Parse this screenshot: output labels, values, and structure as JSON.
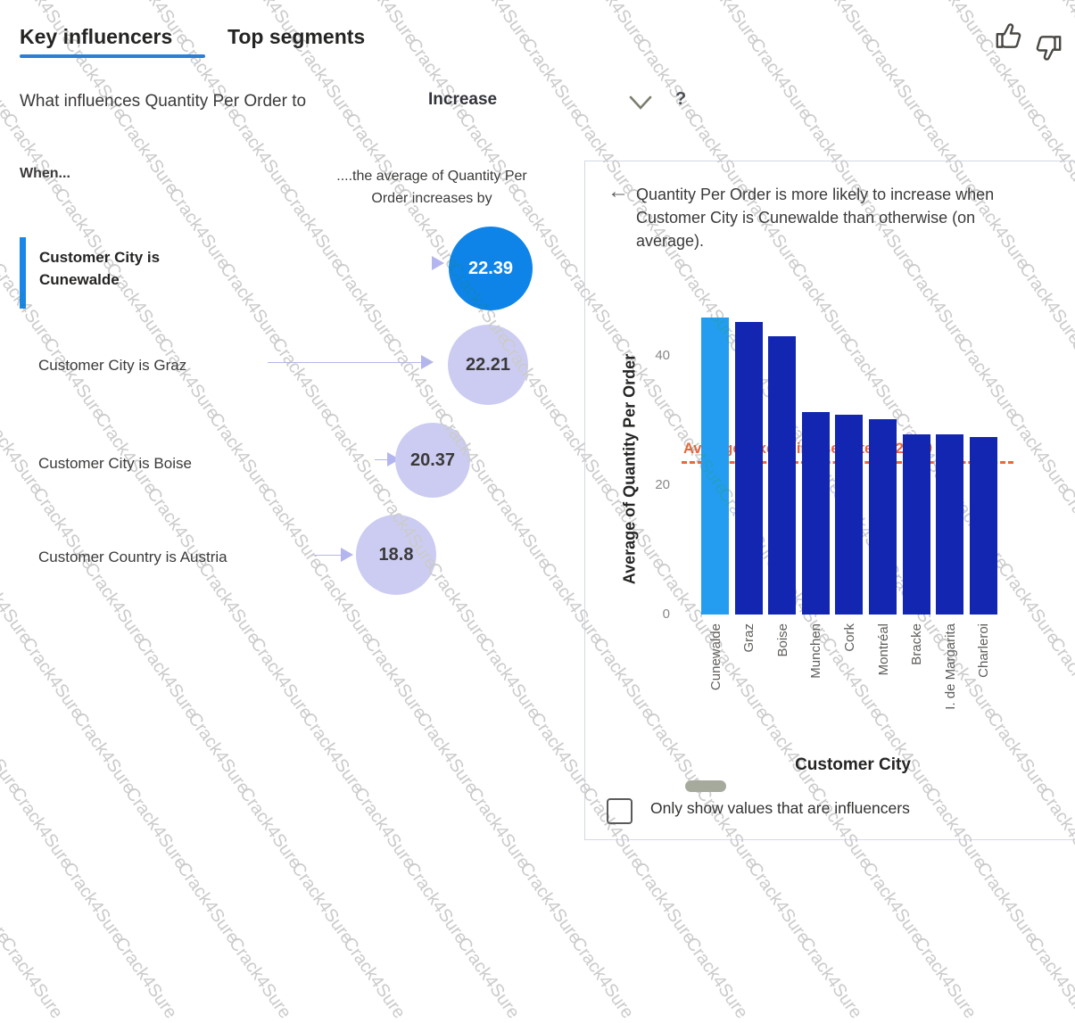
{
  "watermark": {
    "text": "Crack4Sure"
  },
  "tabs": {
    "key_influencers": "Key influencers",
    "top_segments": "Top segments"
  },
  "question": {
    "prefix": "What influences Quantity Per Order to",
    "dropdown_value": "Increase",
    "help": "?"
  },
  "left_panel": {
    "when_header": "When...",
    "effect_header": "....the average of Quantity Per Order increases by",
    "influencers": [
      {
        "label": "Customer City is Cunewalde",
        "value": "22.39",
        "selected": true
      },
      {
        "label": "Customer City is Graz",
        "value": "22.21",
        "selected": false
      },
      {
        "label": "Customer City is Boise",
        "value": "20.37",
        "selected": false
      },
      {
        "label": "Customer Country is Austria",
        "value": "18.8",
        "selected": false
      }
    ]
  },
  "right_panel": {
    "back_icon": "←",
    "description": "Quantity Per Order is more likely to increase when Customer City is Cunewalde than otherwise (on average).",
    "checkbox_label": "Only show values that are influencers",
    "checkbox_checked": false
  },
  "chart_data": {
    "type": "bar",
    "xlabel": "Customer City",
    "ylabel": "Average of Quantity Per Order",
    "categories": [
      "Cunewalde",
      "Graz",
      "Boise",
      "Munchen",
      "Cork",
      "Montréal",
      "Bracke",
      "I. de Margarita",
      "Charleroi"
    ],
    "values": [
      45.9,
      45.2,
      43.1,
      31.3,
      30.9,
      30.2,
      27.9,
      27.8,
      27.5
    ],
    "highlight_index": 0,
    "yticks": [
      0,
      20,
      40
    ],
    "ylim": [
      0,
      48
    ],
    "grid": false,
    "legend": "none",
    "reference_line": {
      "value": 23.7,
      "label": "Average (excluding selected): 23.70"
    },
    "colors": {
      "highlight": "#249df0",
      "default": "#1226b2",
      "reference": "#e7683a"
    }
  },
  "colors": {
    "accent_blue": "#1a86e8",
    "tab_underline": "#2b7fd4",
    "bubble_primary": "#0f84e8",
    "bubble_lavender": "#ccccf2",
    "watermark_gray": "#cbcbcb"
  }
}
